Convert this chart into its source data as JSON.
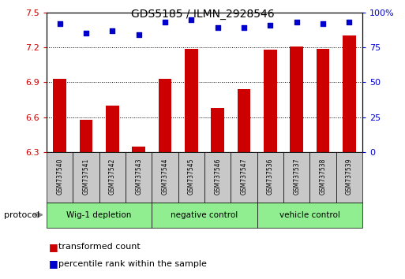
{
  "title": "GDS5185 / ILMN_2928546",
  "samples": [
    "GSM737540",
    "GSM737541",
    "GSM737542",
    "GSM737543",
    "GSM737544",
    "GSM737545",
    "GSM737546",
    "GSM737547",
    "GSM737536",
    "GSM737537",
    "GSM737538",
    "GSM737539"
  ],
  "bar_values": [
    6.93,
    6.58,
    6.7,
    6.35,
    6.93,
    7.19,
    6.68,
    6.84,
    7.18,
    7.21,
    7.19,
    7.3
  ],
  "percentile_values": [
    92,
    85,
    87,
    84,
    93,
    95,
    89,
    89,
    91,
    93,
    92,
    93
  ],
  "ylim_left": [
    6.3,
    7.5
  ],
  "ylim_right": [
    0,
    100
  ],
  "yticks_left": [
    6.3,
    6.6,
    6.9,
    7.2,
    7.5
  ],
  "yticks_right": [
    0,
    25,
    50,
    75,
    100
  ],
  "ytick_labels_left": [
    "6.3",
    "6.6",
    "6.9",
    "7.2",
    "7.5"
  ],
  "ytick_labels_right": [
    "0",
    "25",
    "50",
    "75",
    "100%"
  ],
  "bar_color": "#cc0000",
  "dot_color": "#0000cc",
  "bar_bottom": 6.3,
  "groups": [
    {
      "label": "Wig-1 depletion",
      "start": 0,
      "end": 4
    },
    {
      "label": "negative control",
      "start": 4,
      "end": 8
    },
    {
      "label": "vehicle control",
      "start": 8,
      "end": 12
    }
  ],
  "group_bg_color": "#90ee90",
  "sample_bg_color": "#c8c8c8",
  "legend_red_label": "transformed count",
  "legend_blue_label": "percentile rank within the sample",
  "protocol_label": "protocol"
}
